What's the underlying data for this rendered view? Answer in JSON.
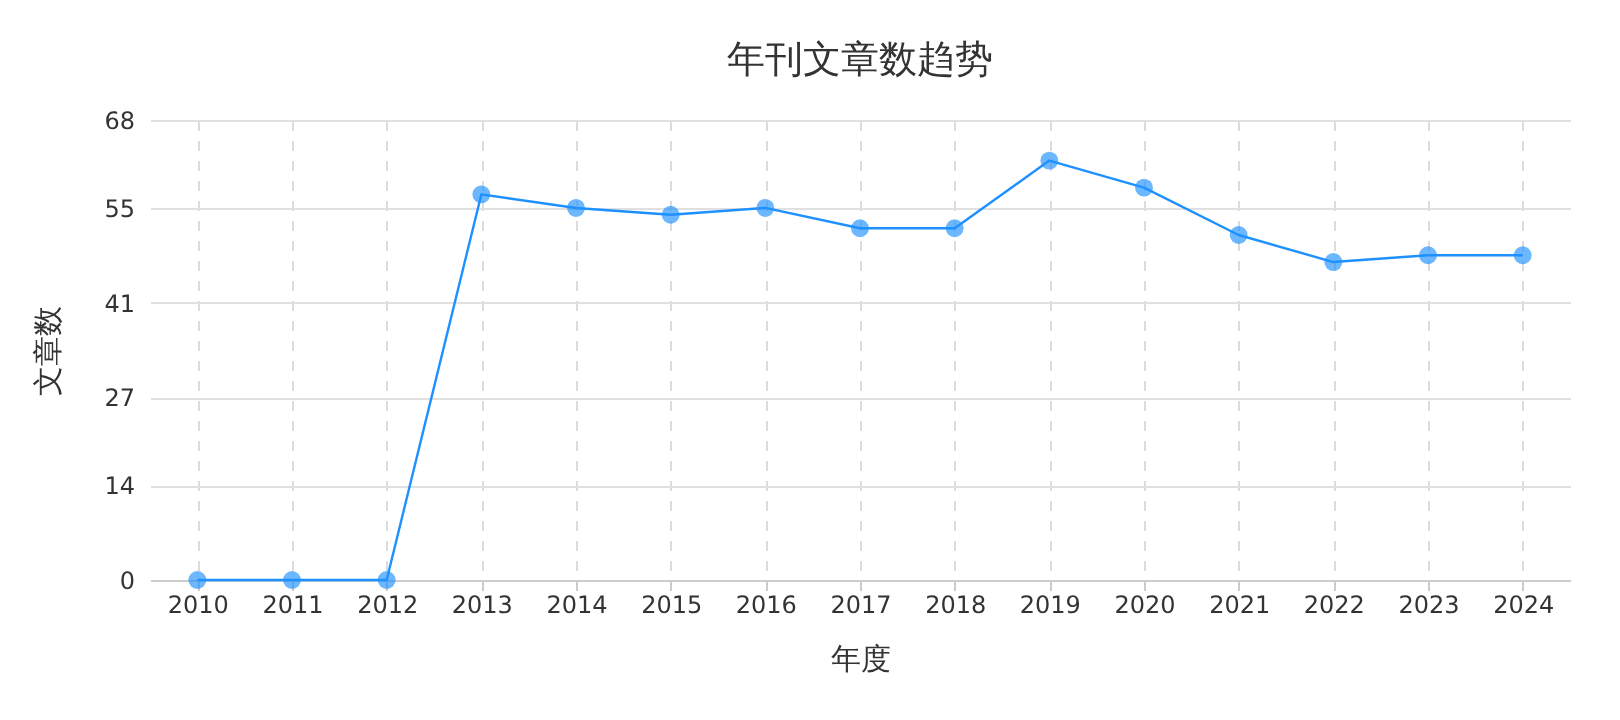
{
  "chart_data": {
    "type": "line",
    "title": "年刊文章数趋势",
    "xlabel": "年度",
    "ylabel": "文章数",
    "categories": [
      "2010",
      "2011",
      "2012",
      "2013",
      "2014",
      "2015",
      "2016",
      "2017",
      "2018",
      "2019",
      "2020",
      "2021",
      "2022",
      "2023",
      "2024"
    ],
    "series": [
      {
        "color": "#1e90ff",
        "values": [
          0,
          0,
          0,
          57,
          55,
          54,
          55,
          52,
          52,
          62,
          58,
          51,
          47,
          48,
          48
        ]
      }
    ],
    "ylim": [
      0,
      68
    ],
    "yticks": [
      0,
      14,
      27,
      41,
      55,
      68
    ],
    "grid": true,
    "marker": "circle",
    "line_style": "solid"
  }
}
